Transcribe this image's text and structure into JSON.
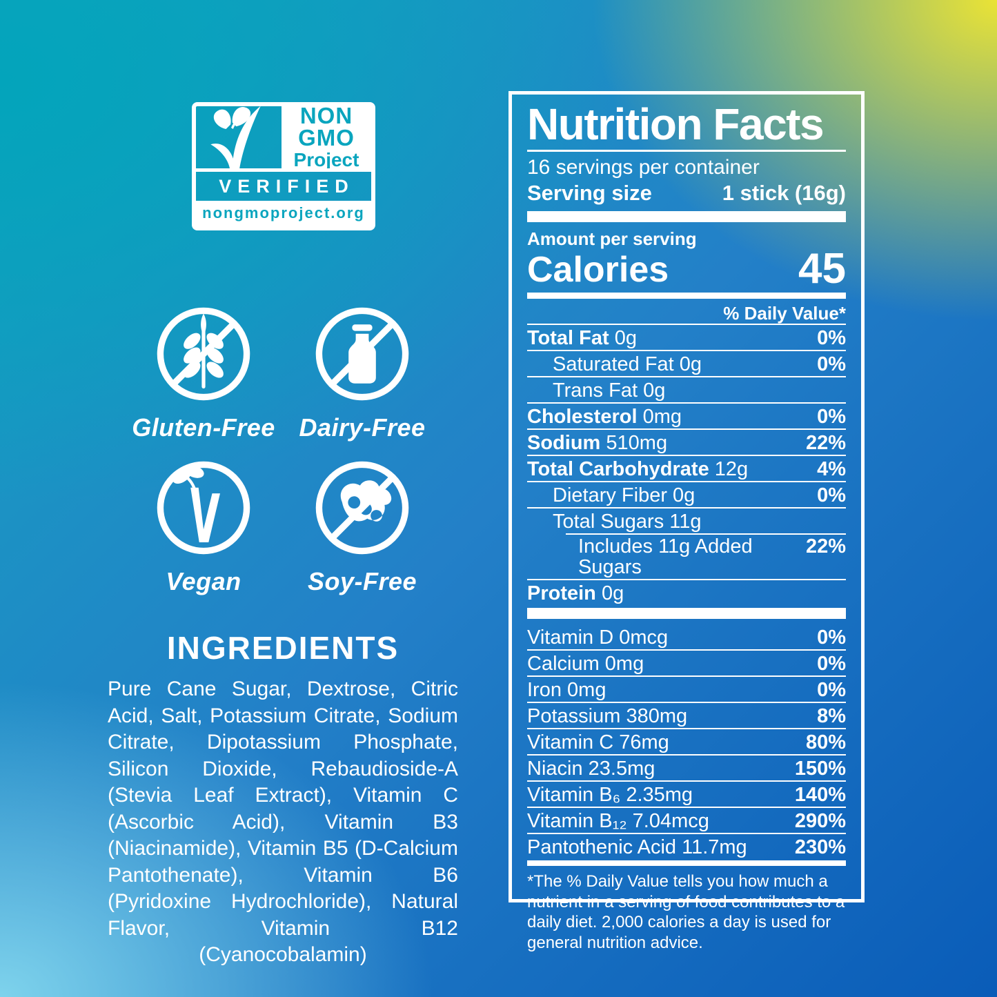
{
  "colors": {
    "white": "#FFFFFF",
    "teal": "#03A4BB",
    "yellow": "#EAE335",
    "light_blue": "#7ED3EC",
    "deep_blue": "#0A5CB8",
    "badge_teal": "#0AA5BE"
  },
  "non_gmo_badge": {
    "line1": "NON",
    "line2": "GMO",
    "line3": "Project",
    "verified": "VERIFIED",
    "url": "nongmoproject.org"
  },
  "diet_icons": [
    {
      "name": "gluten-free",
      "label": "Gluten-Free"
    },
    {
      "name": "dairy-free",
      "label": "Dairy-Free"
    },
    {
      "name": "vegan",
      "label": "Vegan"
    },
    {
      "name": "soy-free",
      "label": "Soy-Free"
    }
  ],
  "ingredients": {
    "title": "INGREDIENTS",
    "text": "Pure Cane Sugar, Dextrose, Citric Acid, Salt, Potassium Citrate, Sodium Citrate, Dipotassium Phosphate, Silicon Dioxide, Rebaudioside-A (Stevia Leaf Extract), Vitamin C (Ascorbic Acid), Vitamin B3 (Niacinamide), Vitamin B5 (D-Calcium Pantothenate), Vitamin B6 (Pyridoxine Hydrochloride), Natural Flavor, Vitamin B12 (Cyanocobalamin)"
  },
  "nutrition": {
    "title": "Nutrition Facts",
    "servings_per_container": "16 servings per container",
    "serving_size_label": "Serving size",
    "serving_size_value": "1 stick (16g)",
    "amount_per_serving": "Amount per serving",
    "calories_label": "Calories",
    "calories_value": "45",
    "daily_value_header": "% Daily Value*",
    "rows": [
      {
        "bold": "Total Fat",
        "rest": "0g",
        "dv": "0%",
        "indent": 0
      },
      {
        "bold": "",
        "rest": "Saturated Fat 0g",
        "dv": "0%",
        "indent": 1
      },
      {
        "bold": "",
        "rest": "Trans Fat 0g",
        "dv": "",
        "indent": 1
      },
      {
        "bold": "Cholesterol",
        "rest": "0mg",
        "dv": "0%",
        "indent": 0
      },
      {
        "bold": "Sodium",
        "rest": "510mg",
        "dv": "22%",
        "indent": 0
      },
      {
        "bold": "Total Carbohydrate",
        "rest": "12g",
        "dv": "4%",
        "indent": 0
      },
      {
        "bold": "",
        "rest": "Dietary Fiber 0g",
        "dv": "0%",
        "indent": 1
      },
      {
        "bold": "",
        "rest": "Total Sugars 11g",
        "dv": "",
        "indent": 1
      },
      {
        "bold": "",
        "rest": "Includes 11g Added Sugars",
        "dv": "22%",
        "indent": 2,
        "inset": true
      },
      {
        "bold": "Protein",
        "rest": "0g",
        "dv": "",
        "indent": 0
      }
    ],
    "vitamins": [
      {
        "rest": "Vitamin D 0mcg",
        "dv": "0%"
      },
      {
        "rest": "Calcium 0mg",
        "dv": "0%"
      },
      {
        "rest": "Iron 0mg",
        "dv": "0%"
      },
      {
        "rest": "Potassium 380mg",
        "dv": "8%"
      },
      {
        "rest": "Vitamin C 76mg",
        "dv": "80%"
      },
      {
        "rest": "Niacin 23.5mg",
        "dv": "150%"
      },
      {
        "rest": "Vitamin B₆ 2.35mg",
        "dv": "140%"
      },
      {
        "rest": "Vitamin B₁₂ 7.04mcg",
        "dv": "290%"
      },
      {
        "rest": "Pantothenic Acid 11.7mg",
        "dv": "230%"
      }
    ],
    "footnote": "*The % Daily Value tells you how much a nutrient in a serving of food contributes to a daily diet. 2,000 calories a day is used for general nutrition advice."
  }
}
